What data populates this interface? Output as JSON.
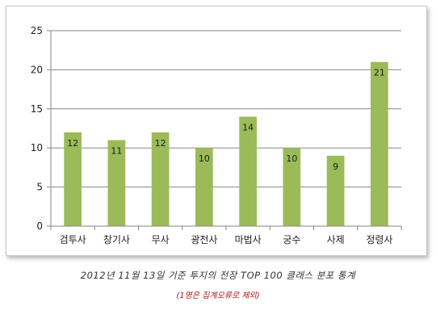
{
  "caption": "2012년 11월 13일 기준 투지의 전장 TOP 100 클래스 분포 통계",
  "subcaption": "(1명은 집계오류로 제외)",
  "colors": {
    "bar": "#9bbb59",
    "grid": "#868686",
    "axis": "#868686",
    "frame": "#c9c9c9"
  },
  "chart_data": {
    "type": "bar",
    "title": "",
    "xlabel": "",
    "ylabel": "",
    "categories": [
      "검투사",
      "창기사",
      "무사",
      "광전사",
      "마법사",
      "궁수",
      "사제",
      "정령사"
    ],
    "values": [
      12,
      11,
      12,
      10,
      14,
      10,
      9,
      21
    ],
    "data_labels": [
      "12",
      "11",
      "12",
      "10",
      "14",
      "10",
      "9",
      "21"
    ],
    "ylim": [
      0,
      25
    ],
    "yticks": [
      "0",
      "5",
      "10",
      "15",
      "20",
      "25"
    ],
    "grid": true,
    "legend": "none"
  }
}
